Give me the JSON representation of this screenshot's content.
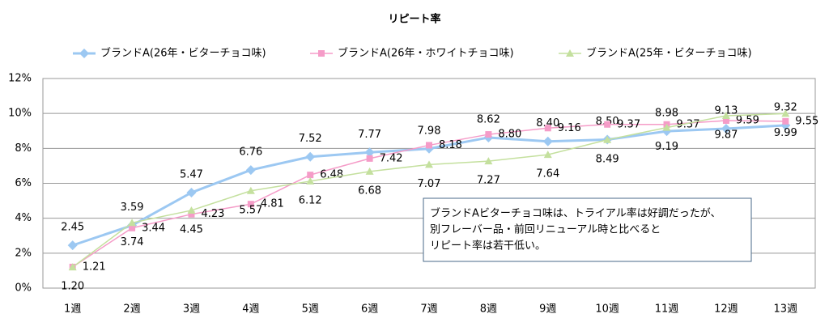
{
  "chart_data": {
    "type": "line",
    "title": "リピート率",
    "categories": [
      "1週",
      "2週",
      "3週",
      "4週",
      "5週",
      "6週",
      "7週",
      "8週",
      "9週",
      "10週",
      "11週",
      "12週",
      "13週"
    ],
    "series": [
      {
        "name": "ブランドA(26年・ビターチョコ味)",
        "color": "#9cc8f2",
        "marker": "diamond",
        "width": 3,
        "values": [
          2.45,
          3.59,
          5.47,
          6.76,
          7.52,
          7.77,
          7.98,
          8.62,
          8.4,
          8.5,
          8.98,
          9.13,
          9.32
        ],
        "value_labels": [
          "2.45",
          "3.59",
          "5.47",
          "6.76",
          "7.52",
          "7.77",
          "7.98",
          "8.62",
          "8.40",
          "8.50",
          "8.98",
          "9.13",
          "9.32"
        ]
      },
      {
        "name": "ブランドA(26年・ホワイトチョコ味)",
        "color": "#f59cc8",
        "marker": "square",
        "width": 1.5,
        "values": [
          1.21,
          3.44,
          4.23,
          4.81,
          6.48,
          7.42,
          8.18,
          8.8,
          9.16,
          9.37,
          9.37,
          9.59,
          9.55
        ],
        "value_labels": [
          "1.21",
          "3.44",
          "4.23",
          "4.81",
          "6.48",
          "7.42",
          "8.18",
          "8.80",
          "9.16",
          "9.37",
          "9.37",
          "9.59",
          "9.55"
        ]
      },
      {
        "name": "ブランドA(25年・ビターチョコ味)",
        "color": "#c4e09e",
        "marker": "triangle",
        "width": 1.5,
        "values": [
          1.2,
          3.74,
          4.45,
          5.57,
          6.12,
          6.68,
          7.07,
          7.27,
          7.64,
          8.49,
          9.19,
          9.87,
          9.99
        ],
        "value_labels": [
          "1.20",
          "3.74",
          "4.45",
          "5.57",
          "6.12",
          "6.68",
          "7.07",
          "7.27",
          "7.64",
          "8.49",
          "9.19",
          "9.87",
          "9.99"
        ]
      }
    ],
    "ylim": [
      0,
      12
    ],
    "yticks": [
      {
        "value": 0,
        "label": "0%"
      },
      {
        "value": 2,
        "label": "2%"
      },
      {
        "value": 4,
        "label": "4%"
      },
      {
        "value": 6,
        "label": "6%"
      },
      {
        "value": 8,
        "label": "8%"
      },
      {
        "value": 10,
        "label": "10%"
      },
      {
        "value": 12,
        "label": "12%"
      }
    ],
    "grid": true,
    "legend": "top",
    "annotation": [
      "ブランドAビターチョコ味は、トライアル率は好調だったが、",
      "別フレーバー品・前回リニューアル時と比べると",
      "リピート率は若干低い。"
    ]
  }
}
